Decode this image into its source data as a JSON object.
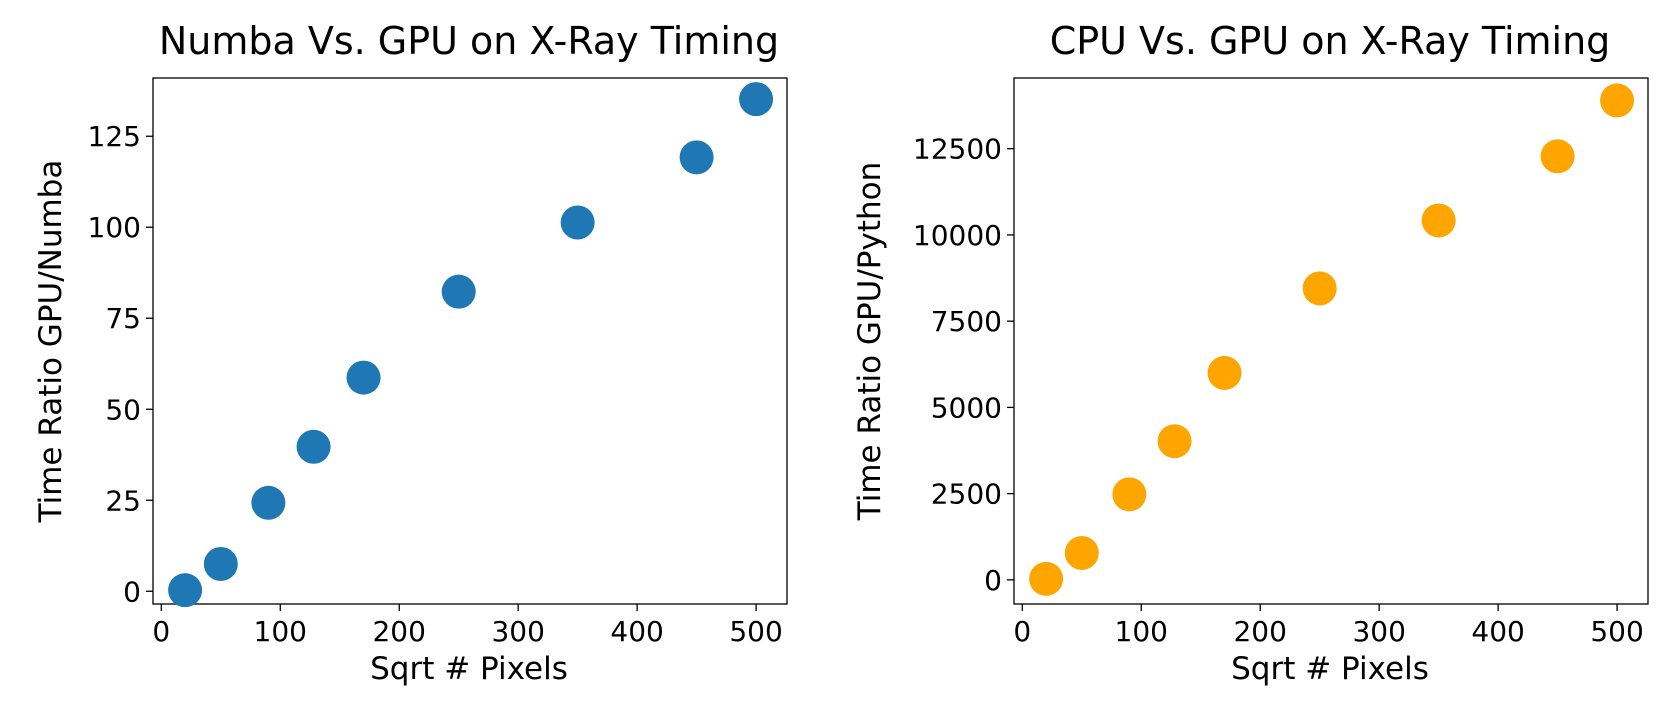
{
  "chart_data": [
    {
      "type": "scatter",
      "title": "Numba Vs. GPU on X-Ray Timing",
      "xlabel": "Sqrt # Pixels",
      "ylabel": "Time Ratio GPU/Numba",
      "xlim": [
        -7,
        526
      ],
      "ylim": [
        -3.5,
        141
      ],
      "xticks": [
        0,
        100,
        200,
        300,
        400,
        500
      ],
      "yticks": [
        0,
        25,
        50,
        75,
        100,
        125
      ],
      "grid": false,
      "series": [
        {
          "color": "#1f77b4",
          "points": [
            {
              "x": 20,
              "y": 0.3
            },
            {
              "x": 50,
              "y": 7.5
            },
            {
              "x": 90,
              "y": 24.3
            },
            {
              "x": 128,
              "y": 39.7
            },
            {
              "x": 170,
              "y": 58.7
            },
            {
              "x": 250,
              "y": 82.3
            },
            {
              "x": 350,
              "y": 101.3
            },
            {
              "x": 450,
              "y": 119.2
            },
            {
              "x": 500,
              "y": 135.2
            }
          ]
        }
      ]
    },
    {
      "type": "scatter",
      "title": "CPU Vs. GPU on X-Ray Timing",
      "xlabel": "Sqrt # Pixels",
      "ylabel": "Time Ratio GPU/Python",
      "xlim": [
        -7,
        526
      ],
      "ylim": [
        -700,
        14550
      ],
      "xticks": [
        0,
        100,
        200,
        300,
        400,
        500
      ],
      "yticks": [
        0,
        2500,
        5000,
        7500,
        10000,
        12500
      ],
      "grid": false,
      "series": [
        {
          "color": "#ffa500",
          "points": [
            {
              "x": 20,
              "y": 30
            },
            {
              "x": 50,
              "y": 780
            },
            {
              "x": 90,
              "y": 2480
            },
            {
              "x": 128,
              "y": 4020
            },
            {
              "x": 170,
              "y": 6000
            },
            {
              "x": 250,
              "y": 8450
            },
            {
              "x": 350,
              "y": 10420
            },
            {
              "x": 450,
              "y": 12280
            },
            {
              "x": 500,
              "y": 13900
            }
          ]
        }
      ]
    }
  ]
}
